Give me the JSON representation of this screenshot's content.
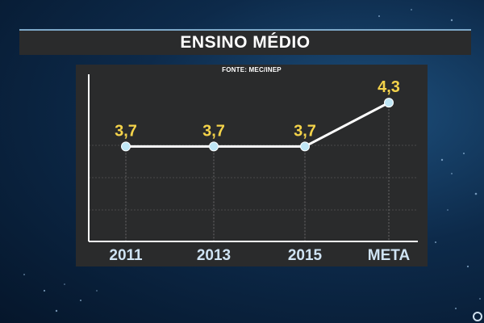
{
  "header": {
    "title": "ENSINO MÉDIO"
  },
  "chart_data": {
    "type": "line",
    "title": "ENSINO MÉDIO",
    "source": "FONTE: MEC/INEP",
    "categories": [
      "2011",
      "2013",
      "2015",
      "META"
    ],
    "values": [
      3.7,
      3.7,
      3.7,
      4.3
    ],
    "value_labels": [
      "3,7",
      "3,7",
      "3,7",
      "4,3"
    ],
    "xlabel": "",
    "ylabel": "",
    "ylim": [
      2.4,
      4.6
    ],
    "grid": true,
    "legend": "none",
    "colors": {
      "line": "#ffffff",
      "marker": "#bfe6f5",
      "value_label": "#f4d34a",
      "category_label": "#cfe3f3",
      "grid": "#4a4a4a",
      "axis": "#ffffff",
      "panel": "#2a2b2c"
    }
  }
}
